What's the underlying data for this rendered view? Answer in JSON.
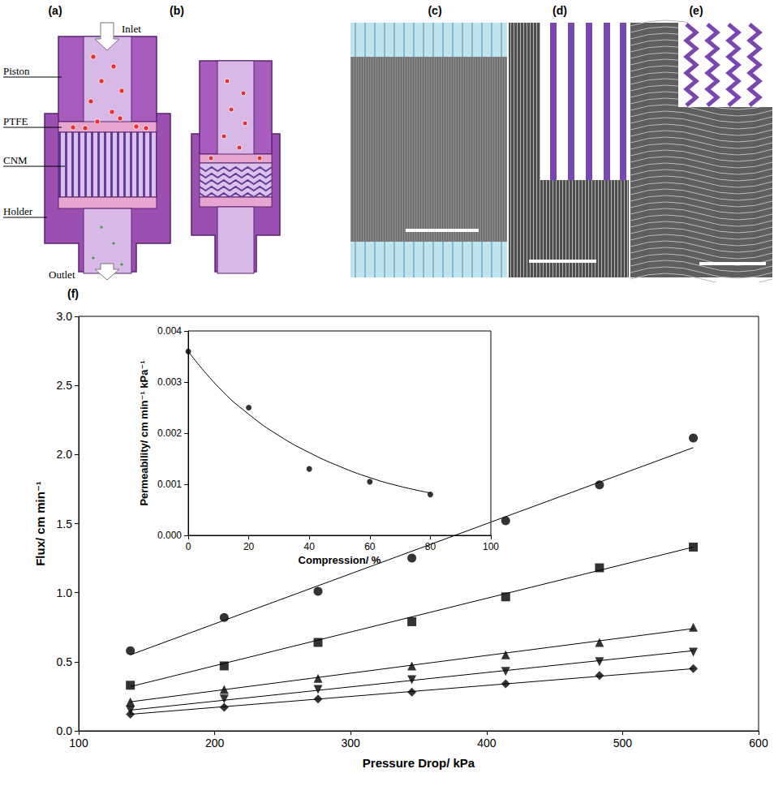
{
  "figure": {
    "panels": [
      {
        "label": "(a)",
        "parts": [
          "Inlet",
          "Piston",
          "PTFE",
          "CNM",
          "Holder",
          "Outlet"
        ]
      },
      {
        "label": "(b)"
      },
      {
        "label": "(c)"
      },
      {
        "label": "(d)"
      },
      {
        "label": "(e)"
      }
    ]
  },
  "chart_data": [
    {
      "panel": "(f)",
      "type": "scatter",
      "x_label": "Pressure Drop/ kPa",
      "y_label": "Flux/ cm min⁻¹",
      "x": [
        138,
        207,
        276,
        345,
        414,
        483,
        552
      ],
      "series": [
        {
          "marker": "circle",
          "color": "#000000",
          "values": [
            0.58,
            0.82,
            1.01,
            1.25,
            1.52,
            1.78,
            2.12
          ],
          "line_style": "solid",
          "fit_line": {
            "x": [
              138,
              552
            ],
            "values": [
              0.55,
              2.05
            ]
          }
        },
        {
          "marker": "square",
          "color": "#000000",
          "values": [
            0.33,
            0.47,
            0.64,
            0.79,
            0.97,
            1.18,
            1.33
          ],
          "line_style": "solid",
          "fit_line": {
            "x": [
              138,
              552
            ],
            "values": [
              0.32,
              1.33
            ]
          }
        },
        {
          "marker": "triangle",
          "color": "#000000",
          "values": [
            0.21,
            0.3,
            0.38,
            0.47,
            0.55,
            0.64,
            0.75
          ],
          "line_style": "solid",
          "fit_line": {
            "x": [
              138,
              552
            ],
            "values": [
              0.21,
              0.74
            ]
          }
        },
        {
          "marker": "triangle_down",
          "color": "#000000",
          "values": [
            0.15,
            0.23,
            0.3,
            0.37,
            0.43,
            0.5,
            0.57
          ],
          "line_style": "solid",
          "fit_line": {
            "x": [
              138,
              552
            ],
            "values": [
              0.15,
              0.58
            ]
          }
        },
        {
          "marker": "diamond",
          "color": "#000000",
          "values": [
            0.12,
            0.17,
            0.23,
            0.28,
            0.34,
            0.4,
            0.45
          ],
          "line_style": "solid",
          "fit_line": {
            "x": [
              138,
              552
            ],
            "values": [
              0.12,
              0.45
            ]
          }
        }
      ],
      "xlim": [
        100,
        600
      ],
      "xticks": [
        100,
        200,
        300,
        400,
        500,
        600
      ],
      "ylim": [
        0,
        3
      ],
      "yticks": [
        {
          "value": 0,
          "label": "0.0"
        },
        {
          "value": 0.5,
          "label": "0.5"
        },
        {
          "value": 1,
          "label": "1.0"
        },
        {
          "value": 1.5,
          "label": "1.5"
        },
        {
          "value": 2,
          "label": "2.0"
        },
        {
          "value": 2.5,
          "label": "2.5"
        },
        {
          "value": 3,
          "label": "3.0"
        }
      ],
      "grid": false
    },
    {
      "type": "scatter",
      "x_label": "Compression/ %",
      "y_label": "Permeability/ cm min⁻¹ kPa⁻¹",
      "x": [
        0,
        20,
        40,
        60,
        80
      ],
      "series": [
        {
          "marker": "circle",
          "color": "#000000",
          "values": [
            0.0036,
            0.0025,
            0.0013,
            0.00105,
            0.0008
          ],
          "line_style": "solid",
          "fit_line": {
            "x": [
              0,
              10,
              20,
              30,
              40,
              50,
              60,
              70,
              80
            ],
            "values": [
              0.0036,
              0.0029,
              0.00237,
              0.00195,
              0.00162,
              0.00135,
              0.00113,
              0.00096,
              0.00083
            ]
          }
        }
      ],
      "xlim": [
        0,
        100
      ],
      "xticks": [
        0,
        20,
        40,
        60,
        80,
        100
      ],
      "ylim": [
        0,
        0.004
      ],
      "yticks": [
        {
          "value": 0,
          "label": "0.000"
        },
        {
          "value": 0.001,
          "label": "0.001"
        },
        {
          "value": 0.002,
          "label": "0.002"
        },
        {
          "value": 0.003,
          "label": "0.003"
        },
        {
          "value": 0.004,
          "label": "0.004"
        }
      ],
      "grid": false
    }
  ]
}
